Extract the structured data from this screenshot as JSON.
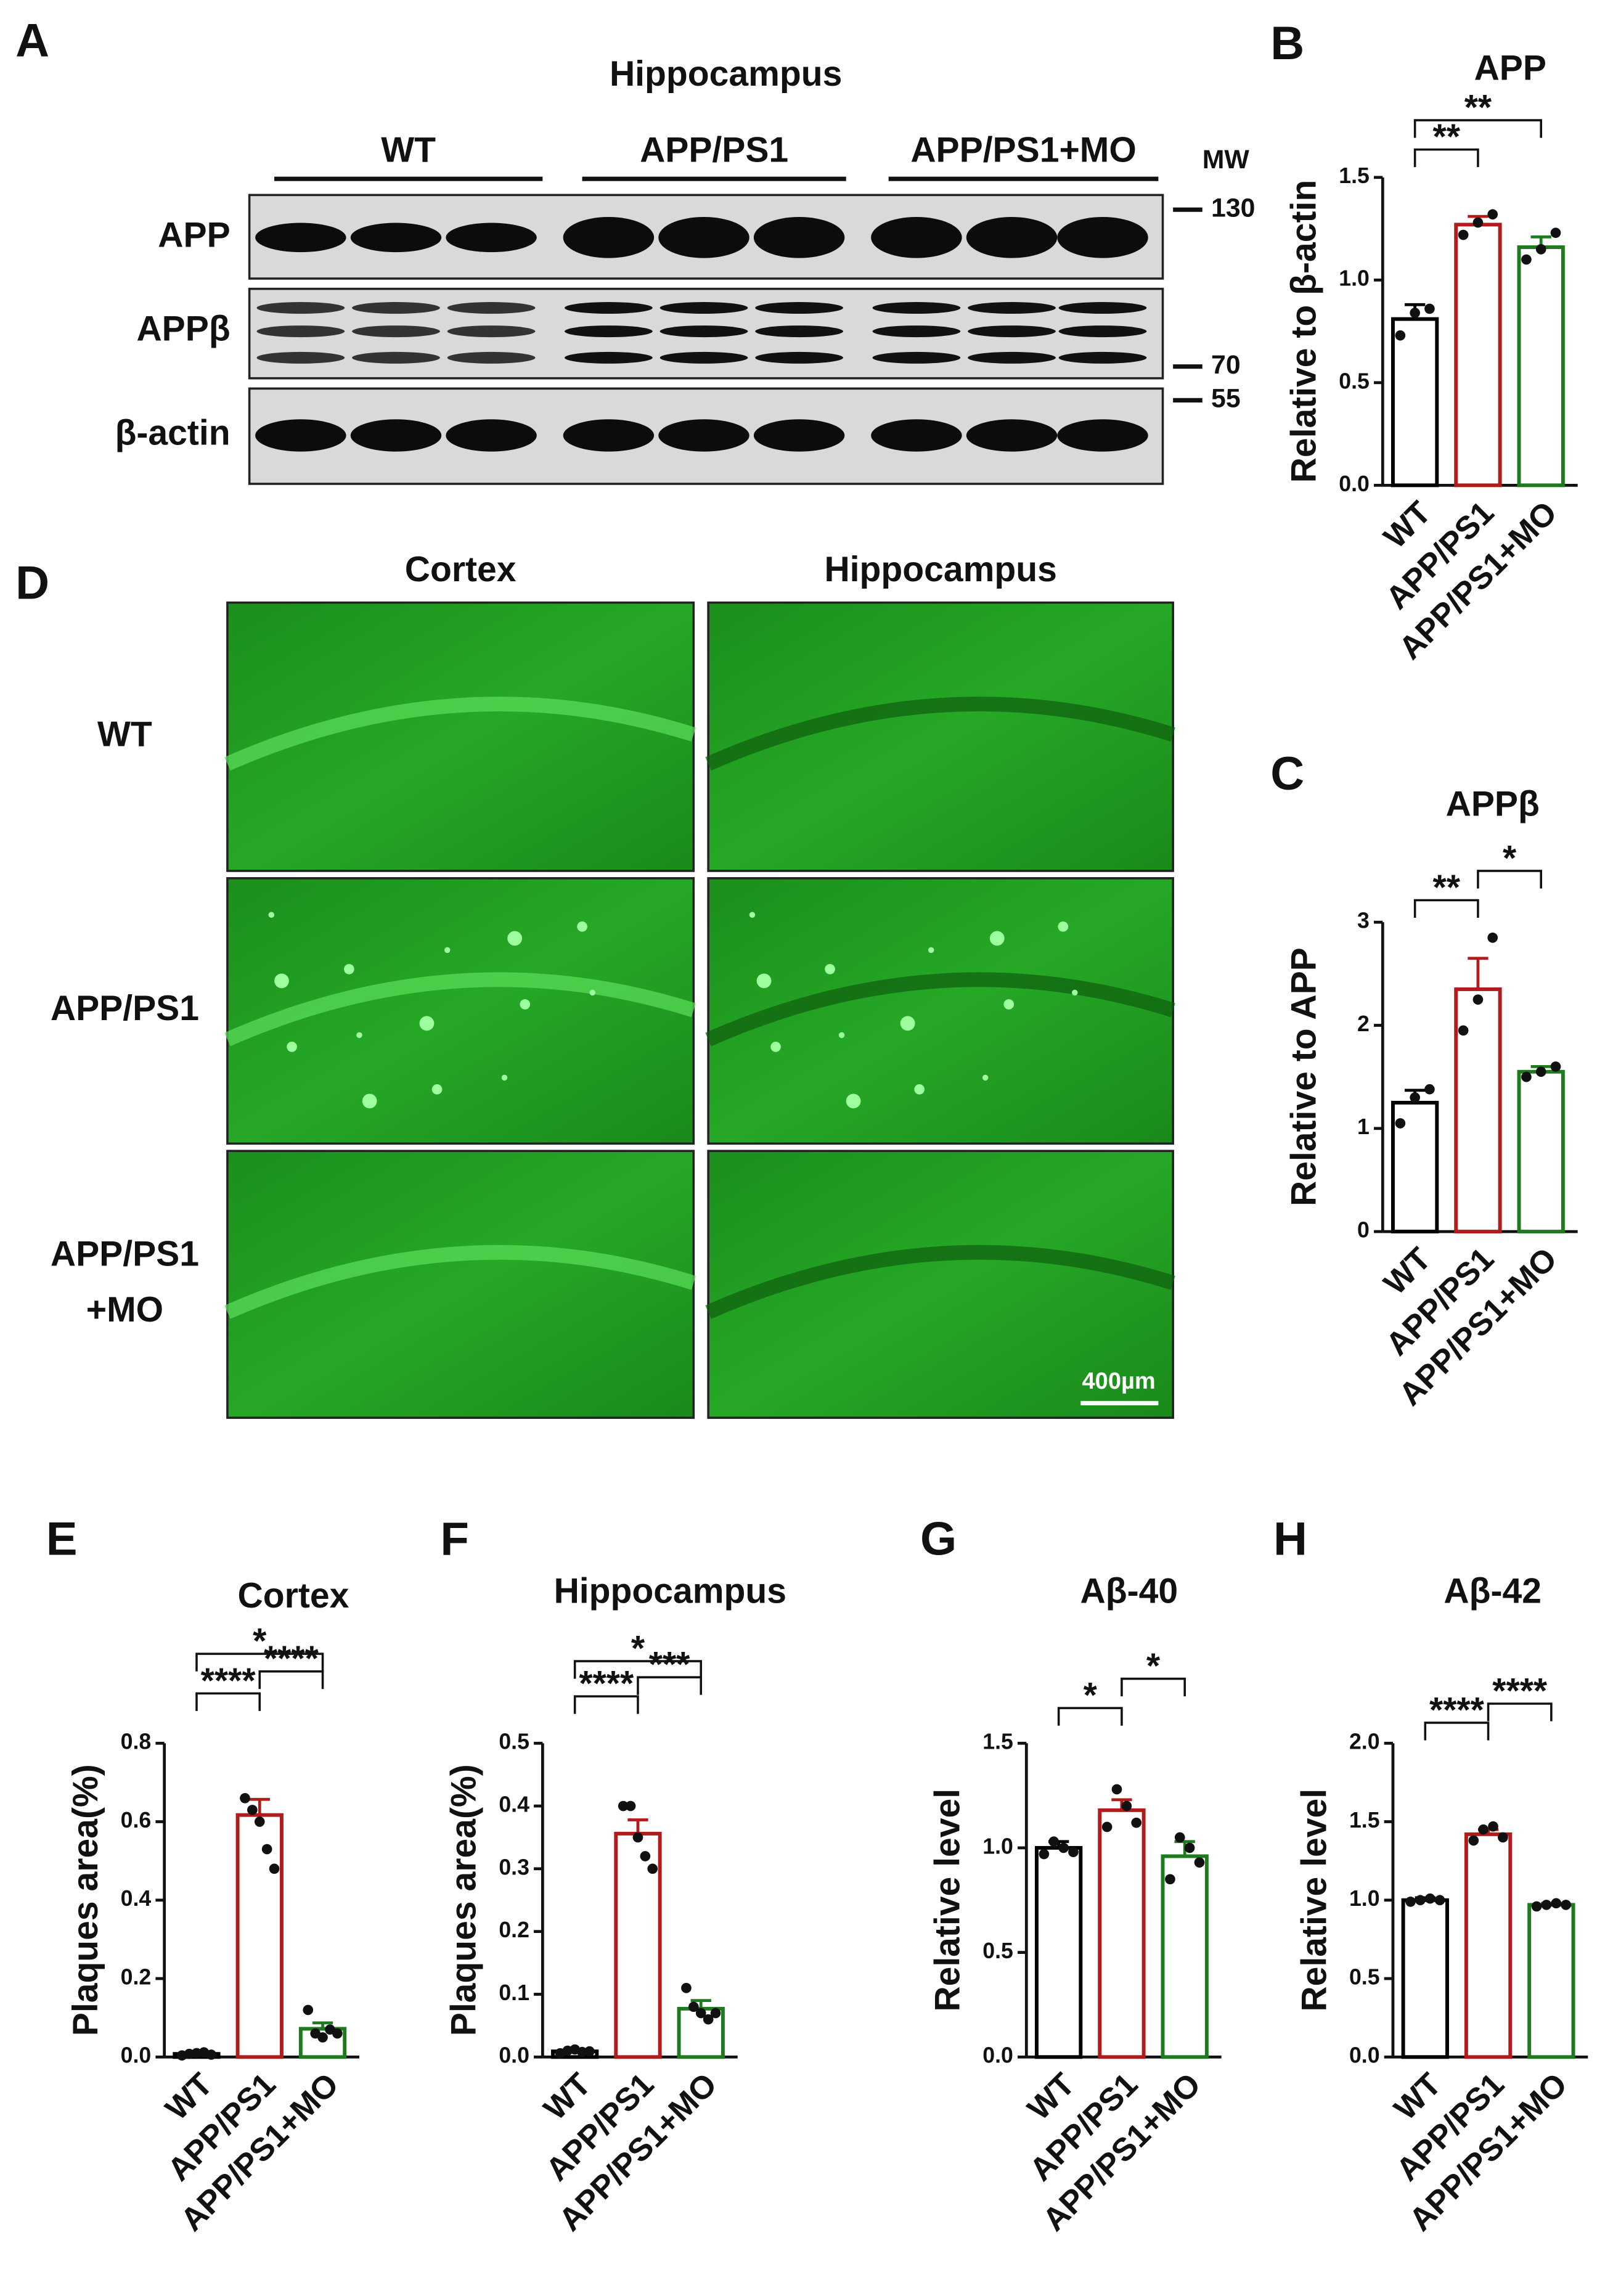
{
  "panel_a": {
    "label": "A",
    "title": "Hippocampus",
    "groups": [
      "WT",
      "APP/PS1",
      "APP/PS1+MO"
    ],
    "rows": [
      "APP",
      "APPβ",
      "β-actin"
    ],
    "mw_title": "MW",
    "mw_markers": [
      130,
      70,
      55
    ]
  },
  "panel_d": {
    "label": "D",
    "columns": [
      "Cortex",
      "Hippocampus"
    ],
    "rows": [
      [
        "WT"
      ],
      [
        "APP/PS1"
      ],
      [
        "APP/PS1",
        "+MO"
      ]
    ],
    "scale_bar": "400µm"
  },
  "chart_data": [
    {
      "type": "bar",
      "panel": "B",
      "title": "APP",
      "y_label": "Relative to β-actin",
      "categories": [
        "WT",
        "APP/PS1",
        "APP/PS1+MO"
      ],
      "colors": [
        "#000000",
        "#b01c1c",
        "#1f7a1f"
      ],
      "values": [
        0.81,
        1.27,
        1.16
      ],
      "errors": [
        0.07,
        0.04,
        0.05
      ],
      "points": [
        [
          0.73,
          0.84,
          0.86
        ],
        [
          1.22,
          1.28,
          1.32
        ],
        [
          1.1,
          1.15,
          1.23
        ]
      ],
      "significance": [
        "**",
        "**"
      ],
      "ylim": [
        0,
        1.5
      ],
      "yticks": [
        {
          "value": 0,
          "label": "0.0"
        },
        {
          "value": 0.5,
          "label": "0.5"
        },
        {
          "value": 1,
          "label": "1.0"
        },
        {
          "value": 1.5,
          "label": "1.5"
        }
      ]
    },
    {
      "type": "bar",
      "panel": "C",
      "title": "APPβ",
      "y_label": "Relative to APP",
      "categories": [
        "WT",
        "APP/PS1",
        "APP/PS1+MO"
      ],
      "colors": [
        "#000000",
        "#b01c1c",
        "#1f7a1f"
      ],
      "values": [
        1.25,
        2.35,
        1.55
      ],
      "errors": [
        0.12,
        0.3,
        0.05
      ],
      "points": [
        [
          1.05,
          1.3,
          1.38
        ],
        [
          1.95,
          2.25,
          2.85
        ],
        [
          1.5,
          1.55,
          1.6
        ]
      ],
      "significance": [
        "**",
        "*"
      ],
      "ylim": [
        0,
        3
      ],
      "yticks": [
        0,
        1,
        2,
        3
      ]
    },
    {
      "type": "bar",
      "panel": "E",
      "title": "Cortex",
      "y_label": "Plaques area(%)",
      "categories": [
        "WT",
        "APP/PS1",
        "APP/PS1+MO"
      ],
      "colors": [
        "#000000",
        "#b01c1c",
        "#1f7a1f"
      ],
      "values": [
        0.008,
        0.617,
        0.072
      ],
      "errors": [
        0.002,
        0.04,
        0.015
      ],
      "points": [
        [
          0.004,
          0.008,
          0.01,
          0.012,
          0.006
        ],
        [
          0.66,
          0.63,
          0.6,
          0.53,
          0.48
        ],
        [
          0.12,
          0.06,
          0.05,
          0.07,
          0.06
        ]
      ],
      "significance": [
        "****",
        "****",
        "*"
      ],
      "ylim": [
        0,
        0.8
      ],
      "yticks": [
        {
          "value": 0,
          "label": "0.0"
        },
        {
          "value": 0.2,
          "label": "0.2"
        },
        {
          "value": 0.4,
          "label": "0.4"
        },
        {
          "value": 0.6,
          "label": "0.6"
        },
        {
          "value": 0.8,
          "label": "0.8"
        }
      ]
    },
    {
      "type": "bar",
      "panel": "F",
      "title": "Hippocampus",
      "y_label": "Plaques area(%)",
      "categories": [
        "WT",
        "APP/PS1",
        "APP/PS1+MO"
      ],
      "colors": [
        "#000000",
        "#b01c1c",
        "#1f7a1f"
      ],
      "values": [
        0.009,
        0.356,
        0.077
      ],
      "errors": [
        0.002,
        0.022,
        0.013
      ],
      "points": [
        [
          0.006,
          0.01,
          0.012,
          0.008,
          0.009
        ],
        [
          0.4,
          0.4,
          0.35,
          0.32,
          0.3
        ],
        [
          0.11,
          0.08,
          0.07,
          0.06,
          0.07
        ]
      ],
      "significance": [
        "****",
        "***",
        "*"
      ],
      "ylim": [
        0,
        0.5
      ],
      "yticks": [
        {
          "value": 0,
          "label": "0.0"
        },
        0.1,
        0.2,
        0.3,
        0.4,
        0.5
      ]
    },
    {
      "type": "bar",
      "panel": "G",
      "title": "Aβ-40",
      "y_label": "Relative level",
      "categories": [
        "WT",
        "APP/PS1",
        "APP/PS1+MO"
      ],
      "colors": [
        "#000000",
        "#b01c1c",
        "#1f7a1f"
      ],
      "values": [
        1.0,
        1.18,
        0.96
      ],
      "errors": [
        0.03,
        0.05,
        0.07
      ],
      "points": [
        [
          0.97,
          1.03,
          1.0,
          0.98
        ],
        [
          1.1,
          1.28,
          1.2,
          1.12
        ],
        [
          0.85,
          1.05,
          1.0,
          0.93
        ]
      ],
      "significance": [
        "*",
        "*"
      ],
      "ylim": [
        0,
        1.5
      ],
      "yticks": [
        {
          "value": 0,
          "label": "0.0"
        },
        {
          "value": 0.5,
          "label": "0.5"
        },
        {
          "value": 1,
          "label": "1.0"
        },
        {
          "value": 1.5,
          "label": "1.5"
        }
      ]
    },
    {
      "type": "bar",
      "panel": "H",
      "title": "Aβ-42",
      "y_label": "Relative level",
      "categories": [
        "WT",
        "APP/PS1",
        "APP/PS1+MO"
      ],
      "colors": [
        "#000000",
        "#b01c1c",
        "#1f7a1f"
      ],
      "values": [
        1.0,
        1.42,
        0.97
      ],
      "errors": [
        0.015,
        0.03,
        0.01
      ],
      "points": [
        [
          0.99,
          1.0,
          1.01,
          1.0
        ],
        [
          1.38,
          1.45,
          1.47,
          1.4
        ],
        [
          0.96,
          0.97,
          0.98,
          0.97
        ]
      ],
      "significance": [
        "****",
        "****"
      ],
      "ylim": [
        0,
        2
      ],
      "yticks": [
        {
          "value": 0,
          "label": "0.0"
        },
        {
          "value": 0.5,
          "label": "0.5"
        },
        {
          "value": 1,
          "label": "1.0"
        },
        {
          "value": 1.5,
          "label": "1.5"
        },
        {
          "value": 2,
          "label": "2.0"
        }
      ]
    }
  ]
}
